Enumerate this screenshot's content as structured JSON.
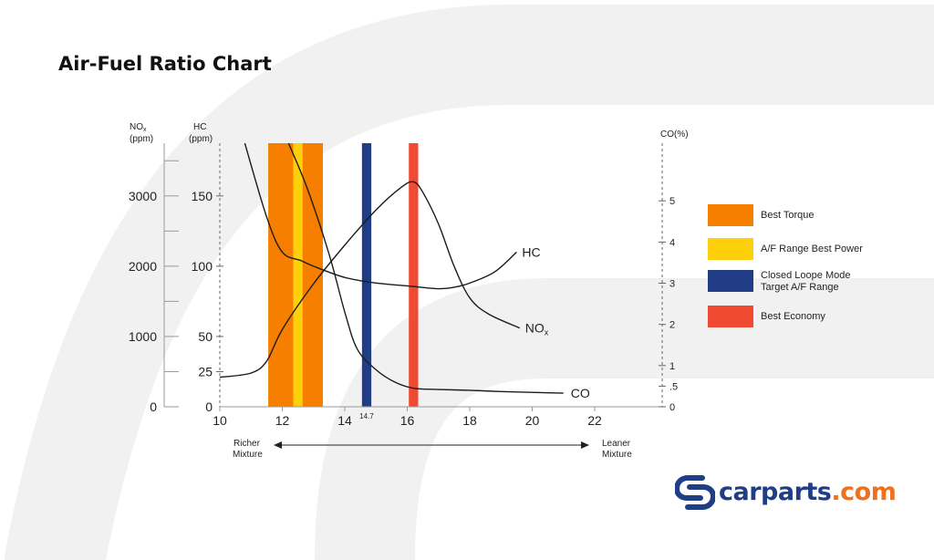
{
  "title": "Air-Fuel Ratio Chart",
  "colors": {
    "best_torque": "#f77f00",
    "best_power": "#fdd00b",
    "closed_loop": "#213d86",
    "best_economy": "#f04a32",
    "line": "#1c1c1c",
    "watermark": "#f1f1f1",
    "brand_blue": "#1f3e86",
    "brand_orange": "#f0701e"
  },
  "axes": {
    "nox_title": [
      "NO",
      "x",
      "(ppm)"
    ],
    "hc_title": [
      "HC",
      "(ppm)"
    ],
    "co_title": "CO(%)",
    "richer_label": [
      "Richer",
      "Mixture"
    ],
    "leaner_label": [
      "Leaner",
      "Mixture"
    ]
  },
  "chart_data": {
    "type": "line",
    "x_axis": {
      "range": [
        10,
        24.5
      ],
      "ticks": [
        10,
        12,
        14,
        16,
        18,
        20,
        22
      ],
      "extra_tick": "14.7"
    },
    "nox_axis": {
      "range": [
        0,
        3750
      ],
      "tick_labels": [
        "0",
        "1000",
        "2000",
        "3000"
      ]
    },
    "hc_axis": {
      "range": [
        0,
        187.5
      ],
      "tick_labels": [
        "0",
        "25",
        "50",
        "100",
        "150"
      ],
      "tick_values": [
        0,
        25,
        50,
        100,
        150
      ]
    },
    "co_axis": {
      "range": [
        0,
        6.4
      ],
      "tick_labels": [
        "0",
        ".5",
        "1",
        "2",
        "3",
        "4",
        "5"
      ],
      "tick_values": [
        0,
        0.5,
        1,
        2,
        3,
        4,
        5
      ]
    },
    "bands": [
      {
        "name": "Best Torque",
        "from": 11.55,
        "to": 13.3,
        "color": "#f77f00"
      },
      {
        "name": "A/F Range Best Power",
        "from": 12.35,
        "to": 12.65,
        "color": "#fdd00b"
      },
      {
        "name": "Closed Loope Mode Target A/F Range",
        "from": 14.55,
        "to": 14.85,
        "color": "#213d86"
      },
      {
        "name": "Best Economy",
        "from": 16.05,
        "to": 16.35,
        "color": "#f04a32"
      }
    ],
    "series": [
      {
        "name": "HC",
        "axis": "hc",
        "points": [
          [
            10.8,
            187.5
          ],
          [
            11.5,
            135
          ],
          [
            12,
            110
          ],
          [
            12.6,
            104
          ],
          [
            13,
            100
          ],
          [
            14,
            92
          ],
          [
            15,
            88
          ],
          [
            16,
            86
          ],
          [
            17,
            84
          ],
          [
            17.5,
            85
          ],
          [
            18,
            88
          ],
          [
            18.8,
            96
          ],
          [
            19.5,
            110
          ]
        ]
      },
      {
        "name": "NO",
        "name_sub": "x",
        "axis": "nox",
        "points": [
          [
            10,
            420
          ],
          [
            11,
            480
          ],
          [
            11.5,
            650
          ],
          [
            12,
            1100
          ],
          [
            13,
            1750
          ],
          [
            14,
            2300
          ],
          [
            15,
            2800
          ],
          [
            15.8,
            3120
          ],
          [
            16.2,
            3200
          ],
          [
            16.5,
            3050
          ],
          [
            17,
            2600
          ],
          [
            17.5,
            2000
          ],
          [
            18,
            1550
          ],
          [
            18.6,
            1320
          ],
          [
            19.6,
            1120
          ]
        ]
      },
      {
        "name": "CO",
        "axis": "co",
        "points": [
          [
            12.2,
            6.4
          ],
          [
            12.8,
            5.3
          ],
          [
            13.5,
            3.7
          ],
          [
            14,
            2.3
          ],
          [
            14.4,
            1.4
          ],
          [
            15,
            0.9
          ],
          [
            15.6,
            0.6
          ],
          [
            16.2,
            0.45
          ],
          [
            17,
            0.42
          ],
          [
            18,
            0.4
          ],
          [
            19,
            0.37
          ],
          [
            20,
            0.35
          ],
          [
            21,
            0.33
          ]
        ]
      }
    ]
  },
  "legend": [
    {
      "label": "Best Torque",
      "color": "#f77f00"
    },
    {
      "label": "A/F Range Best Power",
      "color": "#fdd00b"
    },
    {
      "label": "Closed Loope Mode\nTarget A/F Range",
      "color": "#213d86"
    },
    {
      "label": "Best Economy",
      "color": "#f04a32"
    }
  ],
  "logo": {
    "main": "carparts",
    "domain": ".com"
  }
}
